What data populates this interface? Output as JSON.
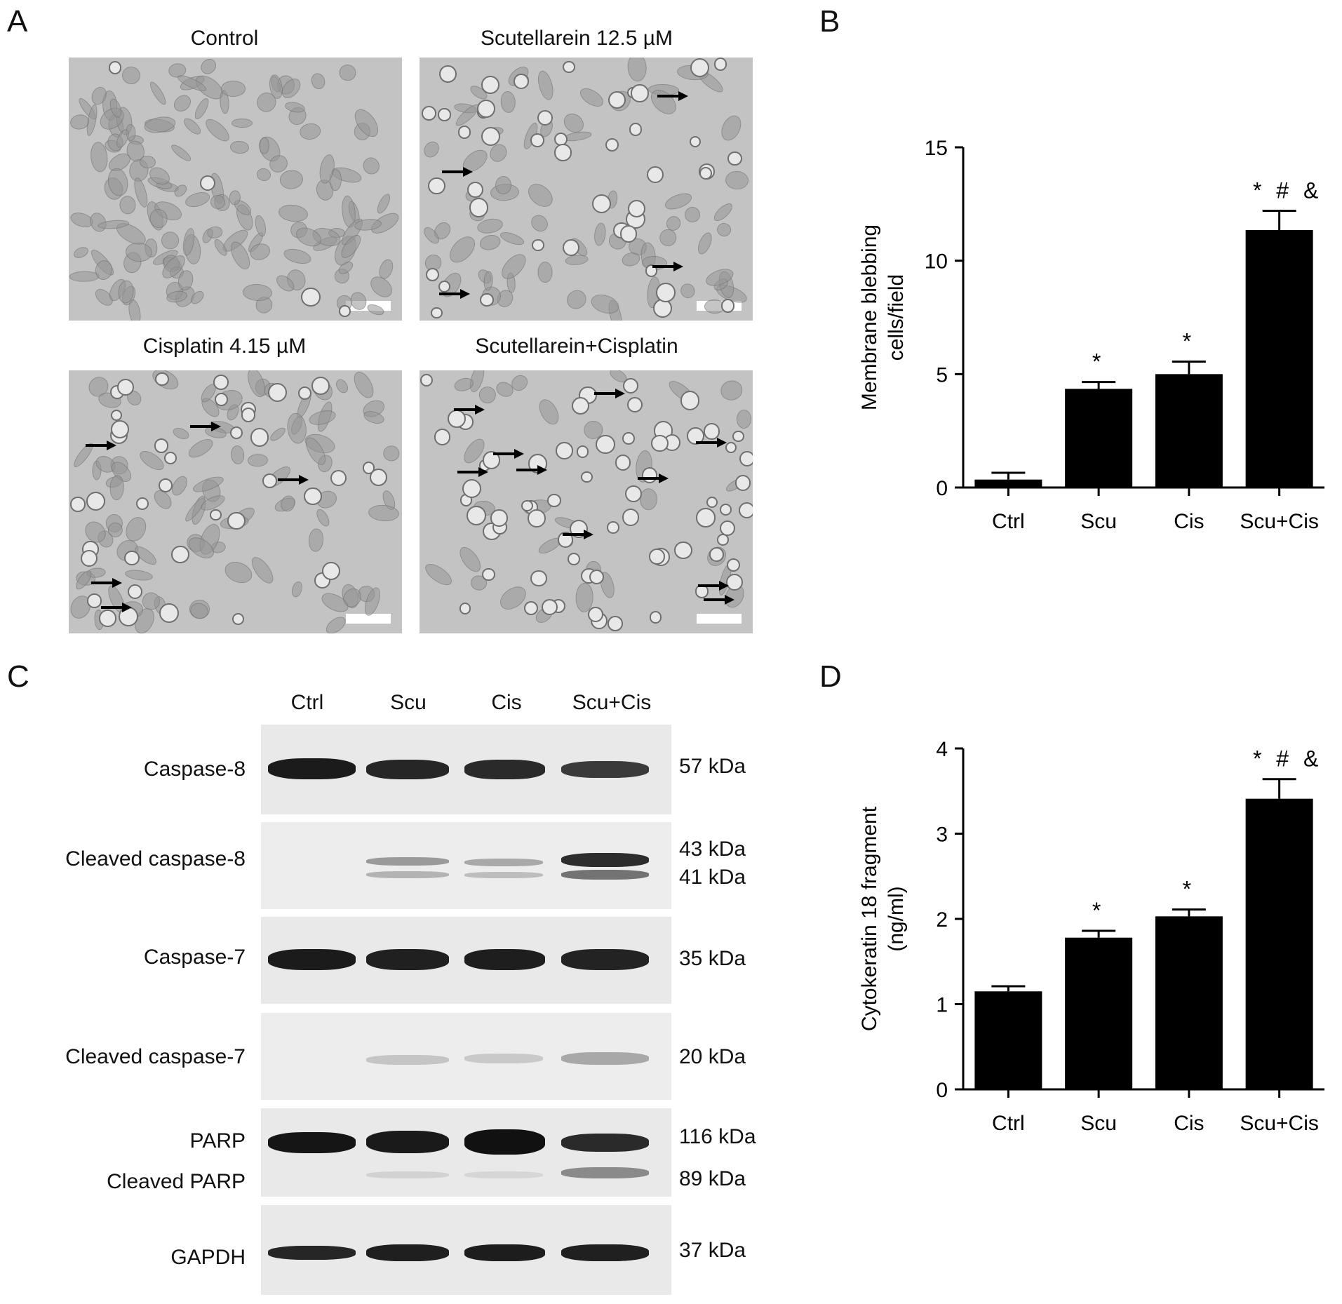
{
  "panel_labels": {
    "a": "A",
    "b": "B",
    "c": "C",
    "d": "D"
  },
  "micrographs": [
    {
      "title": "Control",
      "arrows": 0
    },
    {
      "title": "Scutellarein 12.5 µM",
      "arrows": 4
    },
    {
      "title": "Cisplatin 4.15 µM",
      "arrows": 5
    },
    {
      "title": "Scutellarein+Cisplatin",
      "arrows": 10
    }
  ],
  "western_blot": {
    "lanes": [
      "Ctrl",
      "Scu",
      "Cis",
      "Scu+Cis"
    ],
    "rows": [
      {
        "labels": [
          "Caspase-8"
        ],
        "kda": [
          "57 kDa"
        ]
      },
      {
        "labels": [
          "Cleaved caspase-8"
        ],
        "kda": [
          "43 kDa",
          "41 kDa"
        ]
      },
      {
        "labels": [
          "Caspase-7"
        ],
        "kda": [
          "35 kDa"
        ]
      },
      {
        "labels": [
          "Cleaved caspase-7"
        ],
        "kda": [
          "20 kDa"
        ]
      },
      {
        "labels": [
          "PARP",
          "Cleaved PARP"
        ],
        "kda": [
          "116 kDa",
          "89 kDa"
        ]
      },
      {
        "labels": [
          "GAPDH"
        ],
        "kda": [
          "37 kDa"
        ]
      }
    ]
  },
  "chart_data": [
    {
      "panel": "B",
      "type": "bar",
      "categories": [
        "Ctrl",
        "Scu",
        "Cis",
        "Scu+Cis"
      ],
      "values": [
        0.35,
        4.35,
        5.0,
        11.35
      ],
      "errors": [
        0.3,
        0.3,
        0.55,
        0.85
      ],
      "annotations": [
        "",
        "*",
        "*",
        "* # &"
      ],
      "ylabel": "Membrane blebbing cells/field",
      "ylabel_lines": [
        "Membrane blebbing",
        "cells/field"
      ],
      "ylim": [
        0,
        15
      ],
      "yticks": [
        0,
        5,
        10,
        15
      ],
      "xlabel": "",
      "grid": false,
      "bar_color": "#000000"
    },
    {
      "panel": "D",
      "type": "bar",
      "categories": [
        "Ctrl",
        "Scu",
        "Cis",
        "Scu+Cis"
      ],
      "values": [
        1.15,
        1.78,
        2.03,
        3.41
      ],
      "errors": [
        0.06,
        0.08,
        0.08,
        0.23
      ],
      "annotations": [
        "",
        "*",
        "*",
        "* # &"
      ],
      "ylabel": "Cytokeratin 18 fragment (ng/ml)",
      "ylabel_lines": [
        "Cytokeratin 18 fragment",
        "(ng/ml)"
      ],
      "ylim": [
        0,
        4
      ],
      "yticks": [
        0,
        1,
        2,
        3,
        4
      ],
      "xlabel": "",
      "grid": false,
      "bar_color": "#000000"
    }
  ]
}
